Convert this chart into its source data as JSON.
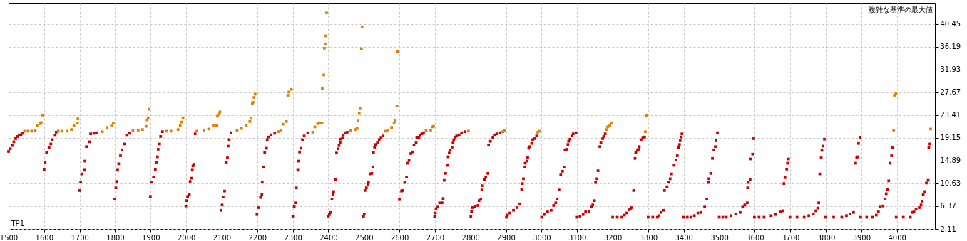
{
  "chart_data": {
    "type": "scatter",
    "xlabel": "TP1",
    "ylabel": "複雑な基準の最大値",
    "xlim": [
      1500,
      4107
    ],
    "ylim": [
      2.11,
      44.38
    ],
    "xticks": [
      1500,
      1600,
      1700,
      1800,
      1900,
      2000,
      2100,
      2200,
      2300,
      2400,
      2500,
      2600,
      2700,
      2800,
      2900,
      3000,
      3100,
      3200,
      3300,
      3400,
      3500,
      3600,
      3700,
      3800,
      3900,
      4000
    ],
    "yticks": [
      2.11,
      6.37,
      10.63,
      14.89,
      19.15,
      23.41,
      27.67,
      31.93,
      36.19,
      40.45
    ],
    "grid": true,
    "marker": "square",
    "series": [
      {
        "color": "#cc0000",
        "x": [
          1500,
          1505,
          1510,
          1515,
          1520,
          1525,
          1530,
          1535,
          1540,
          1600,
          1603,
          1607,
          1614,
          1619,
          1623,
          1631,
          1634,
          1699,
          1703,
          1706,
          1713,
          1715,
          1719,
          1727,
          1731,
          1740,
          1747,
          1799,
          1802,
          1804,
          1807,
          1810,
          1815,
          1819,
          1826,
          1832,
          1840,
          1899,
          1903,
          1908,
          1913,
          1917,
          1919,
          1921,
          1925,
          1928,
          1933,
          1999,
          2001,
          2004,
          2009,
          2011,
          2015,
          2017,
          2019,
          2022,
          2025,
          2098,
          2101,
          2104,
          2108,
          2113,
          2116,
          2118,
          2121,
          2126,
          2199,
          2204,
          2209,
          2213,
          2214,
          2218,
          2221,
          2226,
          2228,
          2231,
          2239,
          2249,
          2300,
          2304,
          2307,
          2310,
          2314,
          2316,
          2319,
          2323,
          2327,
          2332,
          2342,
          2400,
          2403,
          2407,
          2410,
          2413,
          2415,
          2420,
          2423,
          2427,
          2430,
          2433,
          2435,
          2440,
          2442,
          2447,
          2453,
          2499,
          2501,
          2503,
          2507,
          2511,
          2513,
          2517,
          2522,
          2525,
          2527,
          2530,
          2533,
          2538,
          2543,
          2548,
          2554,
          2600,
          2606,
          2610,
          2615,
          2620,
          2623,
          2627,
          2632,
          2637,
          2641,
          2647,
          2649,
          2655,
          2658,
          2663,
          2668,
          2699,
          2701,
          2703,
          2708,
          2713,
          2720,
          2723,
          2726,
          2730,
          2735,
          2737,
          2740,
          2743,
          2748,
          2751,
          2753,
          2757,
          2761,
          2768,
          2775,
          2784,
          2801,
          2803,
          2806,
          2813,
          2821,
          2824,
          2829,
          2832,
          2834,
          2839,
          2843,
          2849,
          2851,
          2856,
          2863,
          2869,
          2874,
          2884,
          2901,
          2904,
          2911,
          2921,
          2931,
          2939,
          2944,
          2946,
          2949,
          2953,
          2954,
          2959,
          2961,
          2964,
          2967,
          2972,
          2975,
          2981,
          2986,
          3000,
          3007,
          3017,
          3027,
          3034,
          3040,
          3044,
          3049,
          3054,
          3059,
          3063,
          3066,
          3070,
          3074,
          3076,
          3080,
          3085,
          3089,
          3097,
          3100,
          3108,
          3117,
          3124,
          3134,
          3140,
          3144,
          3149,
          3152,
          3156,
          3159,
          3164,
          3167,
          3172,
          3175,
          3179,
          3200,
          3213,
          3226,
          3233,
          3240,
          3246,
          3250,
          3253,
          3259,
          3263,
          3265,
          3270,
          3273,
          3275,
          3280,
          3285,
          3290,
          3300,
          3313,
          3326,
          3330,
          3336,
          3343,
          3346,
          3353,
          3358,
          3362,
          3366,
          3373,
          3378,
          3382,
          3385,
          3388,
          3390,
          3393,
          3395,
          3400,
          3410,
          3420,
          3430,
          3440,
          3449,
          3459,
          3465,
          3469,
          3471,
          3476,
          3481,
          3485,
          3489,
          3491,
          3495,
          3500,
          3510,
          3520,
          3533,
          3546,
          3559,
          3566,
          3572,
          3579,
          3580,
          3582,
          3587,
          3589,
          3594,
          3597,
          3599,
          3612,
          3626,
          3646,
          3659,
          3672,
          3680,
          3682,
          3685,
          3690,
          3692,
          3695,
          3699,
          3719,
          3739,
          3752,
          3765,
          3772,
          3777,
          3780,
          3783,
          3787,
          3789,
          3792,
          3796,
          3799,
          3822,
          3845,
          3858,
          3868,
          3878,
          3884,
          3887,
          3890,
          3892,
          3896,
          3898,
          3915,
          3932,
          3942,
          3948,
          3953,
          3961,
          3967,
          3970,
          3973,
          3977,
          3981,
          3985,
          3988,
          3998,
          4018,
          4038,
          4043,
          4048,
          4054,
          4063,
          4068,
          4071,
          4074,
          4079,
          4083,
          4088,
          4090,
          4093
        ],
        "values": [
          16.6,
          17.1,
          17.7,
          18.4,
          19.0,
          19.4,
          19.7,
          19.7,
          20.0,
          13.2,
          14.6,
          16.4,
          17.3,
          18.0,
          18.8,
          19.6,
          20.2,
          9.3,
          10.9,
          12.4,
          13.1,
          14.8,
          17.5,
          18.4,
          19.9,
          20.0,
          20.1,
          7.7,
          9.8,
          11.0,
          13.1,
          14.3,
          15.8,
          16.9,
          18.0,
          19.6,
          20.0,
          8.2,
          10.9,
          11.8,
          13.2,
          14.6,
          15.6,
          17.0,
          18.0,
          19.4,
          20.3,
          6.4,
          7.4,
          8.2,
          8.5,
          11.0,
          11.6,
          13.1,
          13.9,
          14.2,
          19.9,
          5.6,
          6.6,
          8.1,
          9.2,
          14.6,
          15.4,
          17.6,
          18.8,
          20.1,
          4.8,
          6.1,
          8.0,
          8.6,
          10.9,
          13.7,
          16.4,
          17.2,
          18.8,
          19.3,
          19.7,
          20.0,
          4.5,
          6.3,
          7.0,
          9.8,
          13.1,
          14.8,
          16.5,
          17.2,
          18.8,
          19.5,
          20.1,
          4.5,
          4.8,
          5.2,
          7.7,
          8.6,
          9.1,
          11.3,
          16.3,
          17.1,
          17.7,
          18.3,
          18.9,
          19.1,
          19.6,
          20.1,
          20.2,
          4.4,
          4.9,
          9.3,
          9.8,
          10.4,
          10.9,
          12.4,
          12.5,
          13.7,
          16.4,
          17.4,
          17.9,
          18.2,
          18.8,
          19.1,
          19.5,
          7.6,
          9.2,
          9.3,
          10.8,
          11.8,
          14.4,
          14.9,
          16.2,
          16.5,
          17.8,
          18.2,
          19.2,
          19.2,
          19.6,
          19.9,
          20.1,
          4.4,
          5.1,
          5.9,
          6.2,
          7.0,
          7.0,
          7.8,
          11.2,
          12.5,
          14.0,
          15.6,
          16.3,
          16.8,
          17.4,
          18.2,
          18.8,
          19.2,
          19.5,
          19.7,
          20.1,
          20.3,
          4.4,
          5.4,
          6.1,
          6.3,
          6.5,
          7.4,
          7.7,
          9.4,
          10.2,
          11.3,
          11.8,
          12.5,
          17.8,
          18.5,
          19.2,
          19.7,
          19.9,
          20.1,
          4.3,
          4.7,
          5.1,
          5.6,
          6.1,
          6.8,
          9.5,
          10.6,
          11.5,
          13.7,
          14.4,
          14.8,
          15.5,
          17.2,
          17.5,
          18.1,
          18.8,
          19.0,
          19.5,
          4.3,
          4.8,
          5.3,
          5.6,
          6.5,
          7.0,
          7.7,
          9.4,
          12.2,
          12.9,
          13.7,
          16.9,
          17.0,
          17.9,
          18.5,
          18.9,
          19.5,
          19.9,
          20.1,
          4.3,
          4.5,
          4.8,
          5.3,
          5.4,
          6.2,
          6.6,
          7.4,
          10.8,
          11.5,
          13.0,
          17.5,
          18.2,
          19.0,
          19.4,
          19.9,
          4.3,
          4.3,
          4.3,
          4.7,
          5.1,
          5.7,
          5.8,
          6.1,
          9.3,
          15.3,
          16.4,
          16.8,
          17.0,
          17.5,
          18.8,
          19.1,
          19.3,
          4.3,
          4.3,
          4.3,
          4.6,
          5.2,
          5.6,
          9.3,
          10.0,
          10.9,
          11.5,
          12.4,
          14.0,
          15.0,
          15.8,
          17.3,
          17.9,
          18.6,
          19.3,
          19.9,
          4.3,
          4.3,
          4.3,
          4.6,
          5.1,
          5.2,
          6.2,
          7.7,
          10.8,
          11.5,
          12.5,
          15.3,
          16.9,
          17.5,
          18.6,
          20.1,
          4.3,
          4.3,
          4.3,
          4.6,
          4.9,
          5.2,
          6.2,
          6.6,
          7.0,
          9.8,
          10.8,
          11.4,
          15.2,
          16.1,
          19.0,
          4.3,
          4.3,
          4.3,
          4.6,
          4.8,
          5.3,
          5.5,
          10.6,
          11.7,
          13.3,
          14.4,
          15.2,
          4.3,
          4.3,
          4.3,
          4.6,
          4.9,
          5.5,
          6.0,
          7.0,
          12.4,
          15.4,
          16.8,
          17.6,
          18.9,
          4.3,
          4.3,
          4.3,
          4.6,
          4.9,
          5.2,
          14.4,
          15.4,
          15.6,
          18.1,
          19.2,
          4.3,
          4.3,
          4.3,
          4.7,
          5.3,
          6.2,
          6.4,
          7.7,
          8.7,
          9.5,
          11.1,
          14.4,
          15.8,
          17.3,
          4.3,
          4.3,
          4.3,
          5.2,
          5.3,
          5.8,
          6.1,
          6.6,
          7.3,
          8.5,
          9.1,
          10.7,
          11.2,
          17.3,
          18.0
        ]
      },
      {
        "color": "#e08000",
        "x": [
          1545,
          1555,
          1565,
          1575,
          1580,
          1588,
          1592,
          1596,
          1640,
          1650,
          1665,
          1677,
          1684,
          1694,
          1695,
          1764,
          1777,
          1790,
          1795,
          1850,
          1865,
          1877,
          1887,
          1890,
          1893,
          1895,
          1945,
          1957,
          1977,
          1983,
          1987,
          1991,
          2030,
          2050,
          2063,
          2076,
          2085,
          2088,
          2093,
          2095,
          2143,
          2156,
          2169,
          2179,
          2182,
          2186,
          2188,
          2191,
          2194,
          2259,
          2266,
          2272,
          2282,
          2286,
          2289,
          2296,
          2356,
          2362,
          2370,
          2376,
          2382,
          2383,
          2387,
          2389,
          2391,
          2393,
          2462,
          2475,
          2481,
          2483,
          2487,
          2489,
          2493,
          2495,
          2560,
          2568,
          2578,
          2585,
          2588,
          2593,
          2595,
          2675,
          2688,
          2693,
          2696,
          2794,
          2891,
          2896,
          2989,
          2995,
          3182,
          3186,
          3192,
          3196,
          3292,
          3295,
          3991,
          3993,
          3997,
          4095
        ],
        "values": [
          20.4,
          20.4,
          20.4,
          20.5,
          21.5,
          21.8,
          22.0,
          23.4,
          20.4,
          20.4,
          20.4,
          20.7,
          21.5,
          21.9,
          22.7,
          20.3,
          21.1,
          21.5,
          21.9,
          20.5,
          20.6,
          20.7,
          21.3,
          22.5,
          22.9,
          24.5,
          20.4,
          20.4,
          20.7,
          21.4,
          22.1,
          22.9,
          20.4,
          20.5,
          20.8,
          21.4,
          21.5,
          23.2,
          23.6,
          24.0,
          20.5,
          20.9,
          21.5,
          22.2,
          22.8,
          25.5,
          25.8,
          26.7,
          27.3,
          20.3,
          20.6,
          21.7,
          22.2,
          27.1,
          27.7,
          28.2,
          20.2,
          21.2,
          21.8,
          21.9,
          21.9,
          28.4,
          30.9,
          35.9,
          36.7,
          38.2,
          20.5,
          20.7,
          20.9,
          22.3,
          23.7,
          24.6,
          35.8,
          39.9,
          20.4,
          20.6,
          21.1,
          21.9,
          22.4,
          25.1,
          35.3,
          20.5,
          20.6,
          21.2,
          21.3,
          20.4,
          20.3,
          20.5,
          20.2,
          20.4,
          20.7,
          21.2,
          21.4,
          21.9,
          20.3,
          23.3,
          20.6,
          27.1,
          27.4,
          20.8
        ]
      },
      {
        "color": "#a0b000",
        "x": [
          2395
        ],
        "values": [
          42.5
        ]
      }
    ]
  }
}
